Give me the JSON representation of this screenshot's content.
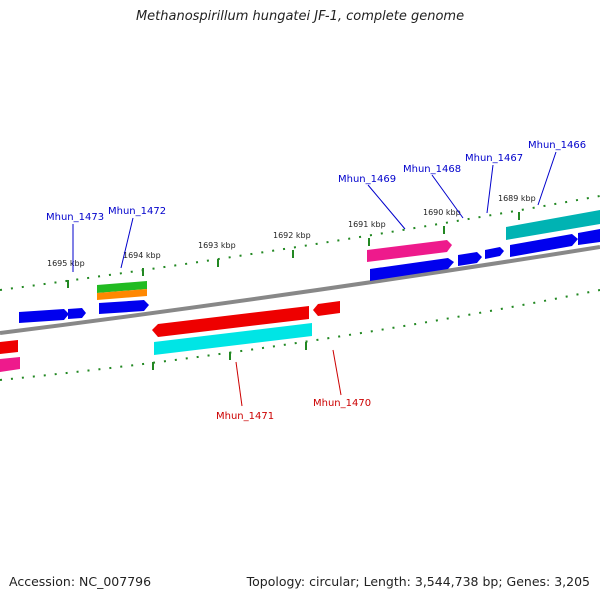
{
  "title": "Methanospirillum hungatei JF-1, complete genome",
  "footer": {
    "accession": "Accession: NC_007796",
    "summary": "Topology: circular; Length: 3,544,738 bp; Genes: 3,205"
  },
  "ruler_labels": [
    "1695 kbp",
    "1694 kbp",
    "1693 kbp",
    "1692 kbp",
    "1691 kbp",
    "1690 kbp",
    "1689 kbp"
  ],
  "gene_labels_top": [
    "Mhun_1473",
    "Mhun_1472",
    "Mhun_1469",
    "Mhun_1468",
    "Mhun_1467",
    "Mhun_1466"
  ],
  "gene_labels_bottom": [
    "Mhun_1471",
    "Mhun_1470"
  ],
  "colors": {
    "blue": "#0000ee",
    "red": "#ee0000",
    "cyan": "#00e5e5",
    "magenta": "#ee1a8c",
    "green": "#22bb22",
    "orange": "#ff8800",
    "teal": "#00b3b3",
    "backbone": "#888888",
    "tick": "#228822",
    "label_top": "#0000cc",
    "label_bottom": "#cc0000"
  }
}
